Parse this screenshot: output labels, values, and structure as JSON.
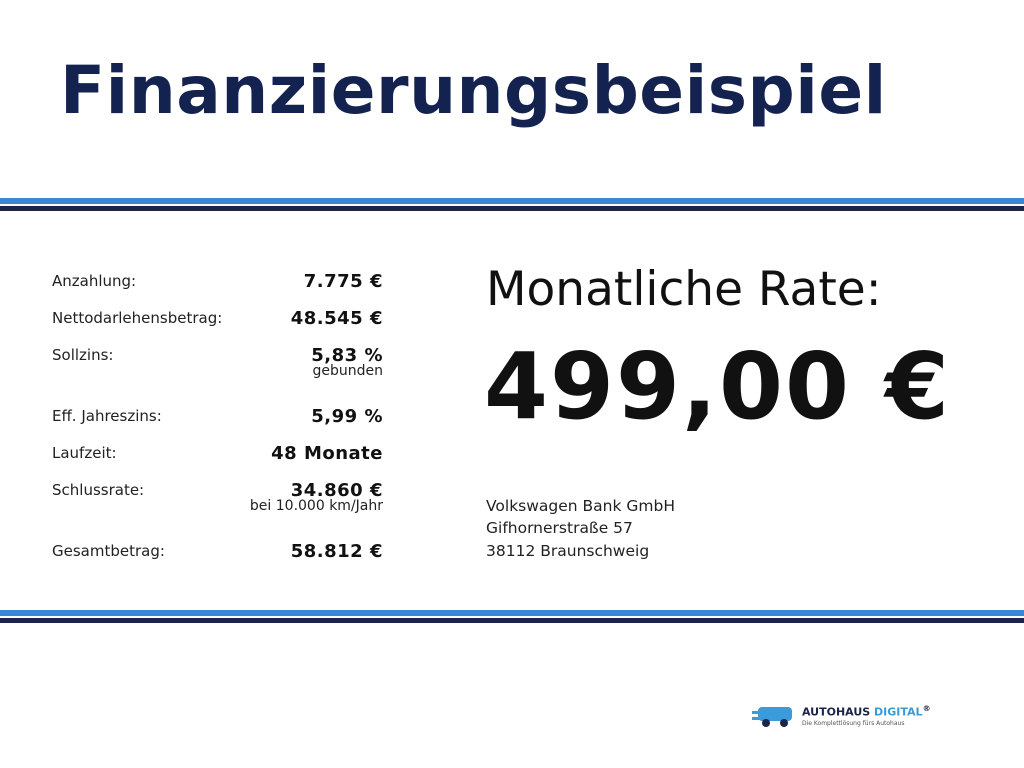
{
  "header": {
    "title": "Finanzierungsbeispiel"
  },
  "table": {
    "rows": [
      [
        "Anzahlung:",
        "7.775 €"
      ],
      [
        "Nettodarlehensbetrag:",
        "48.545 €"
      ],
      [
        "Sollzins:",
        "5,83 %",
        "gebunden"
      ],
      [
        "Eff. Jahreszins:",
        "5,99 %"
      ],
      [
        "Laufzeit:",
        "48 Monate"
      ],
      [
        "Schlussrate:",
        "34.860 €",
        "bei 10.000 km/Jahr"
      ],
      [
        "Gesamtbetrag:",
        "58.812 €"
      ]
    ]
  },
  "rate": {
    "label": "Monatliche Rate:",
    "amount": "499,00 €"
  },
  "lender": {
    "lines": [
      "Volkswagen Bank GmbH",
      "Gifhornerstraße 57",
      "38112 Braunschweig"
    ]
  },
  "logo": {
    "brand": "AUTOHAUS",
    "accent": "DIGITAL",
    "registered": "®",
    "tagline": "Die Komplettlösung fürs Autohaus"
  }
}
